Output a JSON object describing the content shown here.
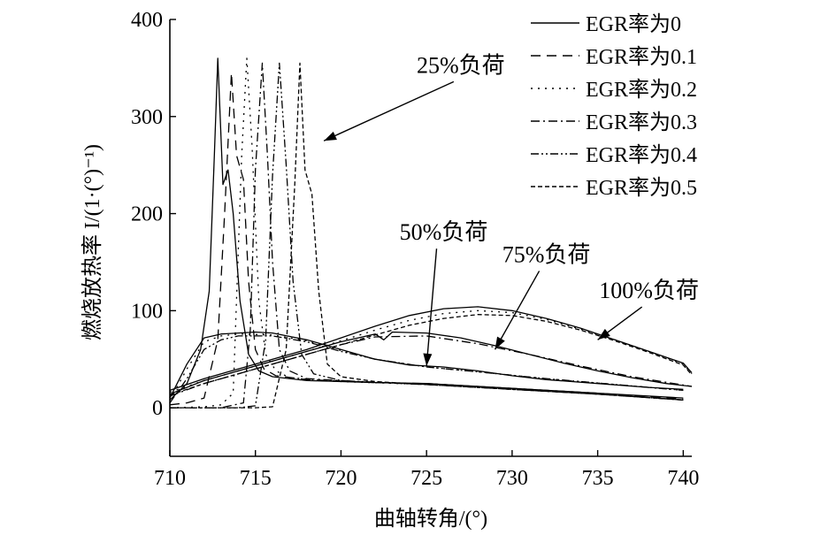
{
  "chart_data": {
    "type": "line",
    "xlabel": "曲轴转角/(°)",
    "ylabel": "燃烧放热率 I/(1·(°)⁻¹)",
    "xlim": [
      710,
      740.5
    ],
    "ylim": [
      -50,
      400
    ],
    "xticks": [
      710,
      715,
      720,
      725,
      730,
      735,
      740
    ],
    "yticks": [
      0,
      100,
      200,
      300,
      400
    ],
    "grid": false,
    "legend_position": "top-right",
    "legend": [
      {
        "label": "EGR率为0",
        "dash": "solid"
      },
      {
        "label": "EGR率为0.1",
        "dash": "long-dash"
      },
      {
        "label": "EGR率为0.2",
        "dash": "dot"
      },
      {
        "label": "EGR率为0.3",
        "dash": "dash-dot"
      },
      {
        "label": "EGR率为0.4",
        "dash": "dash-dot-dot"
      },
      {
        "label": "EGR率为0.5",
        "dash": "short-dash"
      }
    ],
    "annotations": [
      {
        "text": "25%负荷",
        "at": [
          727,
          345
        ],
        "points_to": [
          719,
          275
        ]
      },
      {
        "text": "50%负荷",
        "at": [
          726,
          173
        ],
        "points_to": [
          725,
          43
        ]
      },
      {
        "text": "75%负荷",
        "at": [
          732,
          150
        ],
        "points_to": [
          729,
          60
        ]
      },
      {
        "text": "100%负荷",
        "at": [
          738,
          113
        ],
        "points_to": [
          735,
          70
        ]
      }
    ],
    "series": [
      {
        "name": "EGR率为0",
        "group": "25%负荷",
        "dash": "solid",
        "x": [
          710,
          711,
          711.8,
          712.3,
          712.6,
          712.8,
          713.1,
          713.4,
          713.7,
          714.1,
          714.6,
          715.2,
          716,
          718,
          720,
          722,
          725,
          730,
          735,
          740
        ],
        "y": [
          8,
          25,
          60,
          120,
          260,
          360,
          230,
          245,
          200,
          110,
          55,
          38,
          32,
          28,
          27,
          26,
          25,
          20,
          15,
          10
        ]
      },
      {
        "name": "EGR率为0.1",
        "group": "25%负荷",
        "dash": "long-dash",
        "x": [
          710,
          711,
          712,
          712.8,
          713.2,
          713.6,
          713.9,
          714.3,
          714.6,
          715,
          715.5,
          716.2,
          718,
          722,
          725,
          730,
          735,
          740
        ],
        "y": [
          3,
          5,
          10,
          70,
          200,
          345,
          260,
          235,
          130,
          60,
          40,
          33,
          29,
          26,
          25,
          20,
          15,
          9
        ]
      },
      {
        "name": "EGR率为0.2",
        "group": "25%负荷",
        "dash": "dot",
        "x": [
          710,
          712,
          713,
          713.7,
          714.2,
          714.5,
          714.8,
          715.2,
          715.6,
          716.2,
          717,
          720,
          725,
          730,
          735,
          740
        ],
        "y": [
          0,
          1,
          3,
          15,
          260,
          360,
          270,
          110,
          55,
          38,
          31,
          27,
          24,
          19,
          14,
          8
        ]
      },
      {
        "name": "EGR率为0.3",
        "group": "25%负荷",
        "dash": "dash-dot",
        "x": [
          710,
          713,
          714.3,
          714.7,
          715,
          715.4,
          715.7,
          716,
          716.4,
          717,
          718,
          722,
          725,
          730,
          735,
          740
        ],
        "y": [
          0,
          0,
          5,
          80,
          245,
          355,
          260,
          150,
          60,
          38,
          30,
          26,
          24,
          19,
          14,
          8
        ]
      },
      {
        "name": "EGR率为0.4",
        "group": "25%负荷",
        "dash": "dash-dot-dot",
        "x": [
          710,
          714,
          715,
          715.6,
          716,
          716.4,
          716.8,
          717.2,
          717.7,
          718.4,
          720,
          725,
          730,
          735,
          740
        ],
        "y": [
          0,
          0,
          2,
          70,
          240,
          355,
          250,
          130,
          55,
          35,
          28,
          24,
          19,
          14,
          8
        ]
      },
      {
        "name": "EGR率为0.5",
        "group": "25%负荷",
        "dash": "short-dash",
        "x": [
          710,
          715,
          716,
          716.8,
          717.3,
          717.6,
          717.9,
          718.3,
          718.7,
          719.2,
          720,
          722,
          725,
          730,
          735,
          740
        ],
        "y": [
          0,
          0,
          1,
          60,
          230,
          355,
          245,
          220,
          120,
          45,
          32,
          27,
          24,
          19,
          14,
          8
        ]
      },
      {
        "name": "EGR率为0",
        "group": "50%负荷",
        "dash": "solid",
        "x": [
          710,
          711,
          712,
          713,
          714,
          715,
          716,
          718,
          720,
          722,
          724,
          725,
          726,
          728,
          730,
          732,
          735,
          738,
          740
        ],
        "y": [
          10,
          45,
          72,
          76,
          77,
          78,
          77,
          70,
          60,
          50,
          44,
          43,
          42,
          38,
          33,
          29,
          25,
          21,
          19
        ]
      },
      {
        "name": "EGR率为0.2",
        "group": "50%负荷",
        "dash": "dot",
        "x": [
          710,
          711,
          712,
          713,
          714,
          716,
          718,
          720,
          722,
          725,
          728,
          732,
          736,
          740
        ],
        "y": [
          8,
          40,
          68,
          74,
          76,
          75,
          69,
          59,
          50,
          42,
          37,
          30,
          24,
          18
        ]
      },
      {
        "name": "EGR率为0.4",
        "group": "50%负荷",
        "dash": "dash-dot-dot",
        "x": [
          710,
          711,
          712,
          713,
          714,
          716,
          718,
          720,
          722,
          725,
          728,
          732,
          736,
          740
        ],
        "y": [
          5,
          30,
          60,
          70,
          74,
          74,
          68,
          58,
          50,
          42,
          37,
          30,
          24,
          18
        ]
      },
      {
        "name": "EGR率为0",
        "group": "75%负荷",
        "dash": "solid",
        "x": [
          710,
          712,
          714,
          716,
          718,
          720,
          721,
          722,
          722.5,
          723,
          725,
          727,
          729,
          731,
          733,
          735,
          737,
          739,
          740.5
        ],
        "y": [
          14,
          28,
          38,
          48,
          58,
          68,
          72,
          76,
          70,
          78,
          77,
          72,
          64,
          55,
          46,
          38,
          31,
          25,
          22
        ]
      },
      {
        "name": "EGR率为0.3",
        "group": "75%负荷",
        "dash": "dash-dot",
        "x": [
          710,
          712,
          714,
          716,
          718,
          720,
          722,
          725,
          728,
          731,
          734,
          737,
          740.5
        ],
        "y": [
          12,
          25,
          35,
          45,
          55,
          65,
          73,
          74,
          66,
          55,
          43,
          32,
          22
        ]
      },
      {
        "name": "EGR率为0",
        "group": "100%负荷",
        "dash": "solid",
        "x": [
          710,
          712,
          714,
          716,
          718,
          720,
          722,
          724,
          726,
          728,
          730,
          732,
          734,
          736,
          738,
          740,
          740.5
        ],
        "y": [
          18,
          30,
          40,
          50,
          60,
          72,
          84,
          95,
          102,
          104,
          100,
          92,
          82,
          70,
          58,
          46,
          36
        ]
      },
      {
        "name": "EGR率为0.2",
        "group": "100%负荷",
        "dash": "dot",
        "x": [
          710,
          712,
          714,
          716,
          718,
          720,
          722,
          724,
          726,
          728,
          730,
          732,
          734,
          736,
          738,
          740,
          740.5
        ],
        "y": [
          16,
          28,
          38,
          48,
          58,
          69,
          80,
          90,
          97,
          100,
          98,
          91,
          81,
          70,
          58,
          45,
          35
        ]
      },
      {
        "name": "EGR率为0.5",
        "group": "100%负荷",
        "dash": "short-dash",
        "x": [
          710,
          712,
          714,
          716,
          718,
          720,
          722,
          724,
          726,
          728,
          730,
          732,
          734,
          736,
          738,
          740,
          740.5
        ],
        "y": [
          13,
          25,
          35,
          45,
          55,
          65,
          75,
          85,
          92,
          96,
          95,
          89,
          80,
          69,
          57,
          44,
          34
        ]
      }
    ]
  }
}
